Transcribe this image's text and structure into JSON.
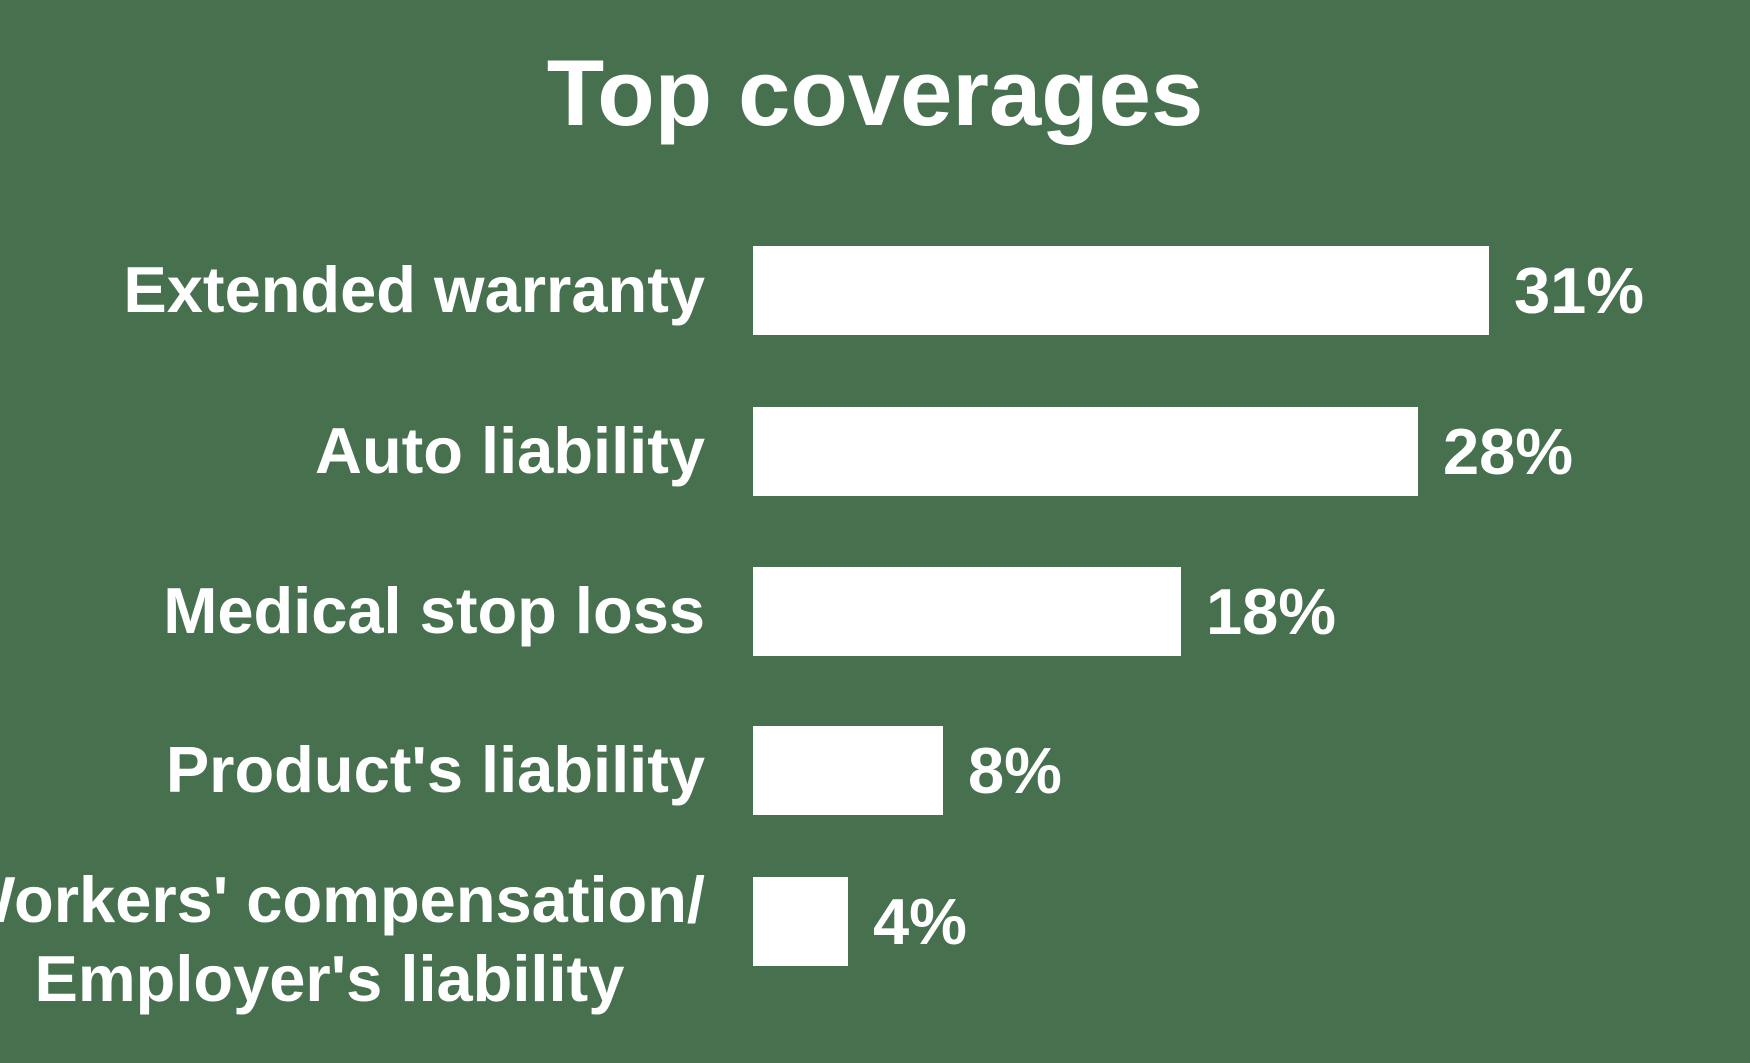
{
  "title": "Top coverages",
  "colors": {
    "background": "#47714E",
    "bar": "#FFFFFF",
    "text": "#FFFFFF"
  },
  "chart_data": {
    "type": "bar",
    "orientation": "horizontal",
    "title": "Top coverages",
    "categories": [
      "Extended warranty",
      "Auto liability",
      "Medical stop loss",
      "Product's liability",
      "Workers' compensation/ Employer's liability"
    ],
    "values": [
      31,
      28,
      18,
      8,
      4
    ],
    "value_labels": [
      "31%",
      "28%",
      "18%",
      "8%",
      "4%"
    ],
    "xlabel": "",
    "ylabel": "",
    "xlim": [
      0,
      31
    ],
    "grid": false,
    "legend": false,
    "value_label_position": "outside-end",
    "category_label_position": "left"
  },
  "rows": [
    {
      "label_lines": [
        "Extended warranty"
      ],
      "value": 31,
      "value_label": "31%"
    },
    {
      "label_lines": [
        "Auto liability"
      ],
      "value": 28,
      "value_label": "28%"
    },
    {
      "label_lines": [
        "Medical stop loss"
      ],
      "value": 18,
      "value_label": "18%"
    },
    {
      "label_lines": [
        "Product's liability"
      ],
      "value": 8,
      "value_label": "8%"
    },
    {
      "label_lines": [
        "Workers' compensation/",
        "Employer's liability"
      ],
      "value": 4,
      "value_label": "4%"
    }
  ]
}
